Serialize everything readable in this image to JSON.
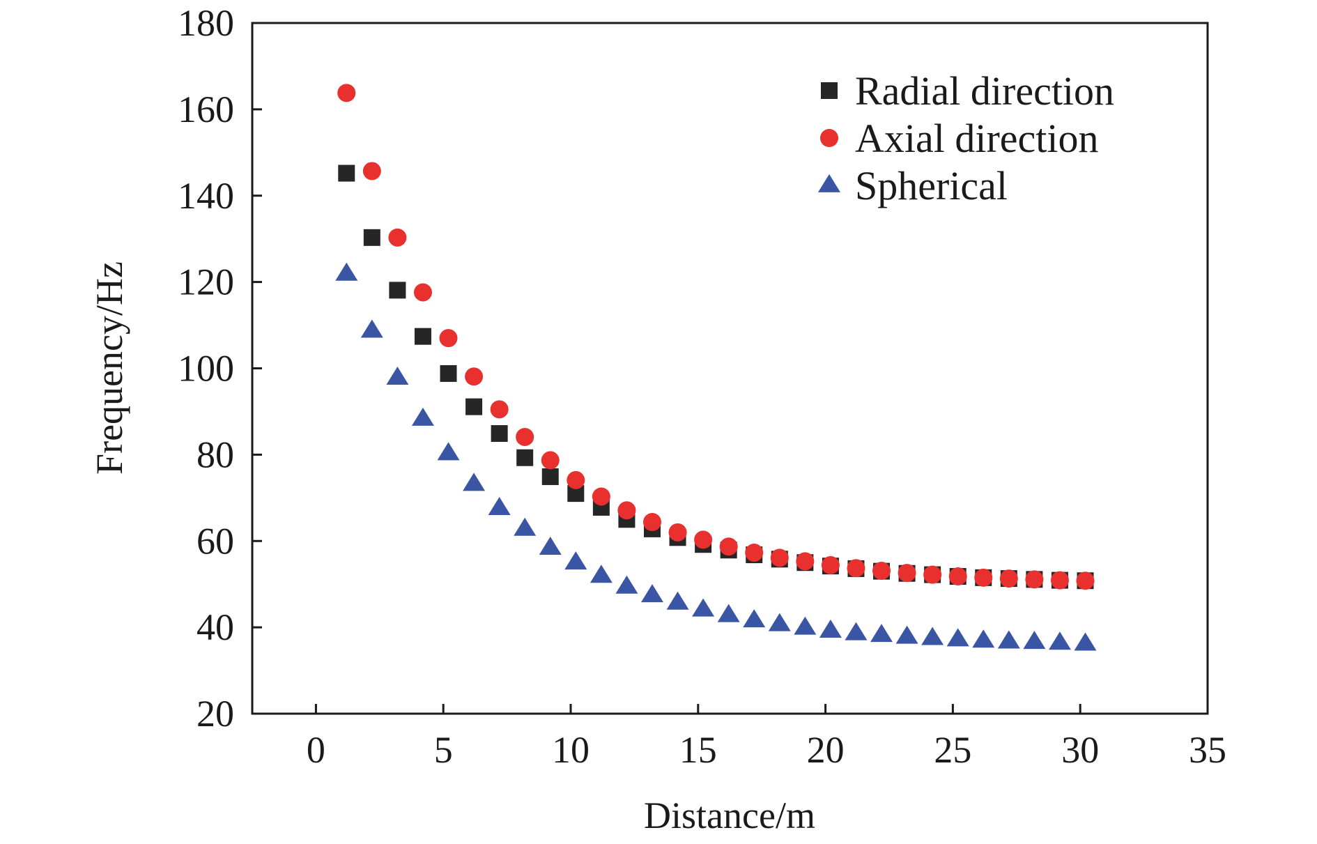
{
  "chart_data": {
    "type": "scatter",
    "xlabel": "Distance/m",
    "ylabel": "Frequency/Hz",
    "xlim": [
      -2.5,
      35
    ],
    "ylim": [
      20,
      180
    ],
    "xticks": [
      0,
      5,
      10,
      15,
      20,
      25,
      30,
      35
    ],
    "yticks": [
      20,
      40,
      60,
      80,
      100,
      120,
      140,
      160,
      180
    ],
    "grid": false,
    "legend_position": "top-right",
    "x": [
      1.2,
      2.2,
      3.2,
      4.2,
      5.2,
      6.2,
      7.2,
      8.2,
      9.2,
      10.2,
      11.2,
      12.2,
      13.2,
      14.2,
      15.2,
      16.2,
      17.2,
      18.2,
      19.2,
      20.2,
      21.2,
      22.2,
      23.2,
      24.2,
      25.2,
      26.2,
      27.2,
      28.2,
      29.2,
      30.2
    ],
    "series": [
      {
        "name": "Radial direction",
        "marker": "square",
        "color": "#262626",
        "values": [
          145.2,
          130.3,
          118.1,
          107.4,
          98.8,
          91.1,
          84.9,
          79.3,
          74.9,
          71.0,
          67.8,
          65.0,
          62.8,
          60.8,
          59.2,
          57.9,
          56.8,
          55.8,
          55.0,
          54.2,
          53.6,
          53.0,
          52.5,
          52.2,
          51.8,
          51.5,
          51.3,
          51.1,
          50.9,
          50.8
        ]
      },
      {
        "name": "Axial direction",
        "marker": "circle",
        "color": "#e8312f",
        "values": [
          163.8,
          145.7,
          130.3,
          117.6,
          107.0,
          98.1,
          90.5,
          84.1,
          78.7,
          74.1,
          70.3,
          67.1,
          64.4,
          62.0,
          60.3,
          58.7,
          57.3,
          56.1,
          55.3,
          54.4,
          53.7,
          53.1,
          52.6,
          52.2,
          51.8,
          51.5,
          51.3,
          51.1,
          50.9,
          50.8
        ]
      },
      {
        "name": "Spherical",
        "marker": "triangle",
        "color": "#3a55a4",
        "values": [
          121.9,
          108.7,
          97.8,
          88.3,
          80.3,
          73.2,
          67.6,
          62.8,
          58.4,
          55.0,
          51.9,
          49.4,
          47.4,
          45.7,
          44.1,
          42.8,
          41.6,
          40.7,
          39.9,
          39.2,
          38.6,
          38.2,
          37.8,
          37.5,
          37.2,
          36.9,
          36.7,
          36.6,
          36.4,
          36.2
        ]
      }
    ]
  }
}
